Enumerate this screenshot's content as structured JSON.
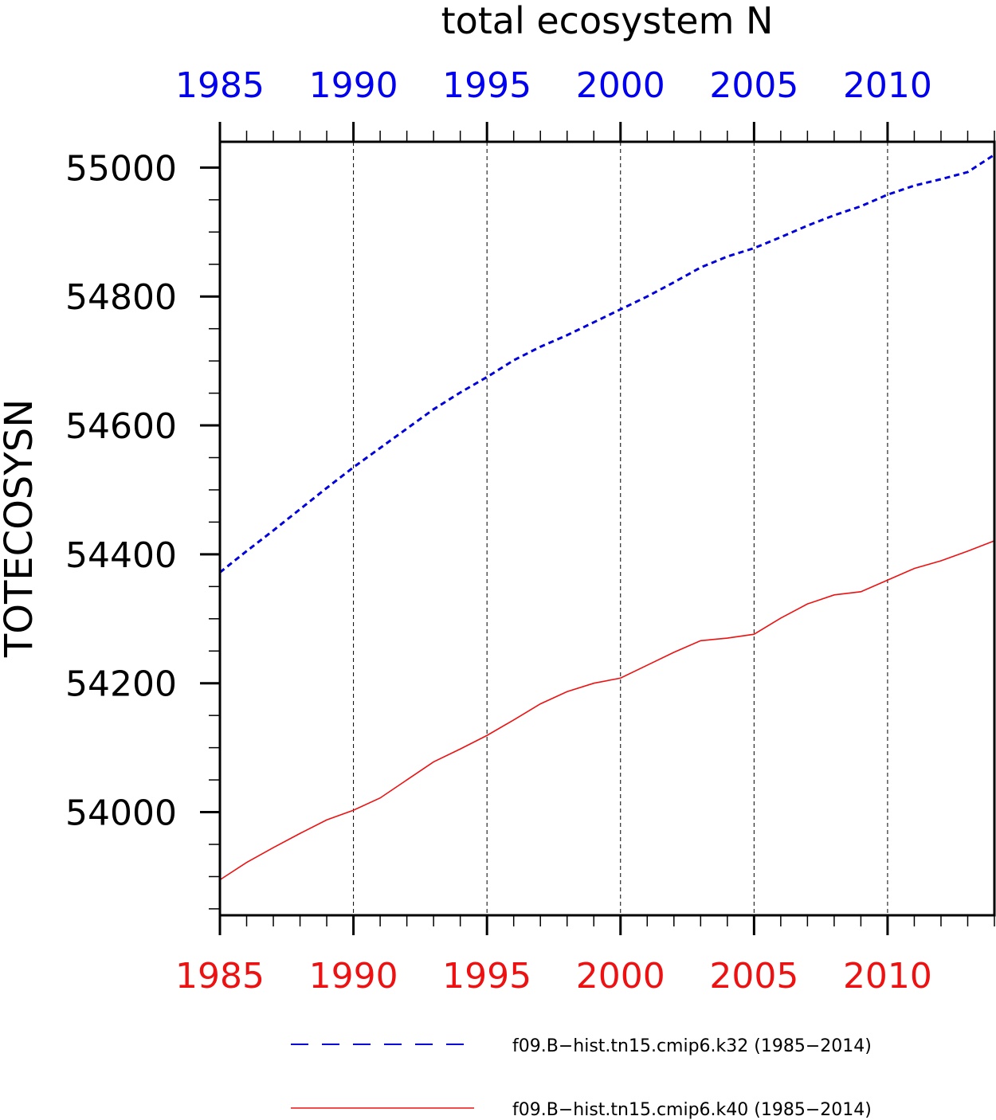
{
  "chart_data": {
    "type": "line",
    "title": "total ecosystem N",
    "ylabel": "TOTECOSYSN",
    "xlabel": "",
    "xlim": [
      1985,
      2014
    ],
    "ylim": [
      53840,
      55040
    ],
    "x_ticks": [
      "1985",
      "1990",
      "1995",
      "2000",
      "2005",
      "2010"
    ],
    "y_ticks": [
      "54000",
      "54200",
      "54400",
      "54600",
      "54800",
      "55000"
    ],
    "grid": "vertical dashed at major x ticks",
    "colors": {
      "top_axis": "#0000ee",
      "bottom_axis": "#ee1111"
    },
    "x": [
      1985,
      1986,
      1987,
      1988,
      1989,
      1990,
      1991,
      1992,
      1993,
      1994,
      1995,
      1996,
      1997,
      1998,
      1999,
      2000,
      2001,
      2002,
      2003,
      2004,
      2005,
      2006,
      2007,
      2008,
      2009,
      2010,
      2011,
      2012,
      2013,
      2014
    ],
    "series": [
      {
        "name": "f09.B−hist.tn15.cmip6.k32 (1985−2014)",
        "color": "#0000dd",
        "style": "dashed",
        "values": [
          54372,
          54405,
          54437,
          54470,
          54503,
          54535,
          54565,
          54595,
          54625,
          54651,
          54675,
          54701,
          54722,
          54740,
          54760,
          54780,
          54800,
          54822,
          54845,
          54862,
          54875,
          54892,
          54910,
          54926,
          54940,
          54958,
          54972,
          54982,
          54993,
          55020
        ]
      },
      {
        "name": "f09.B−hist.tn15.cmip6.k40 (1985−2014)",
        "color": "#ee1111",
        "style": "solid",
        "values": [
          53895,
          53922,
          53945,
          53967,
          53988,
          54003,
          54022,
          54050,
          54078,
          54098,
          54119,
          54143,
          54168,
          54187,
          54200,
          54208,
          54228,
          54248,
          54266,
          54270,
          54276,
          54301,
          54323,
          54337,
          54342,
          54360,
          54378,
          54390,
          54405,
          54421
        ]
      }
    ]
  }
}
